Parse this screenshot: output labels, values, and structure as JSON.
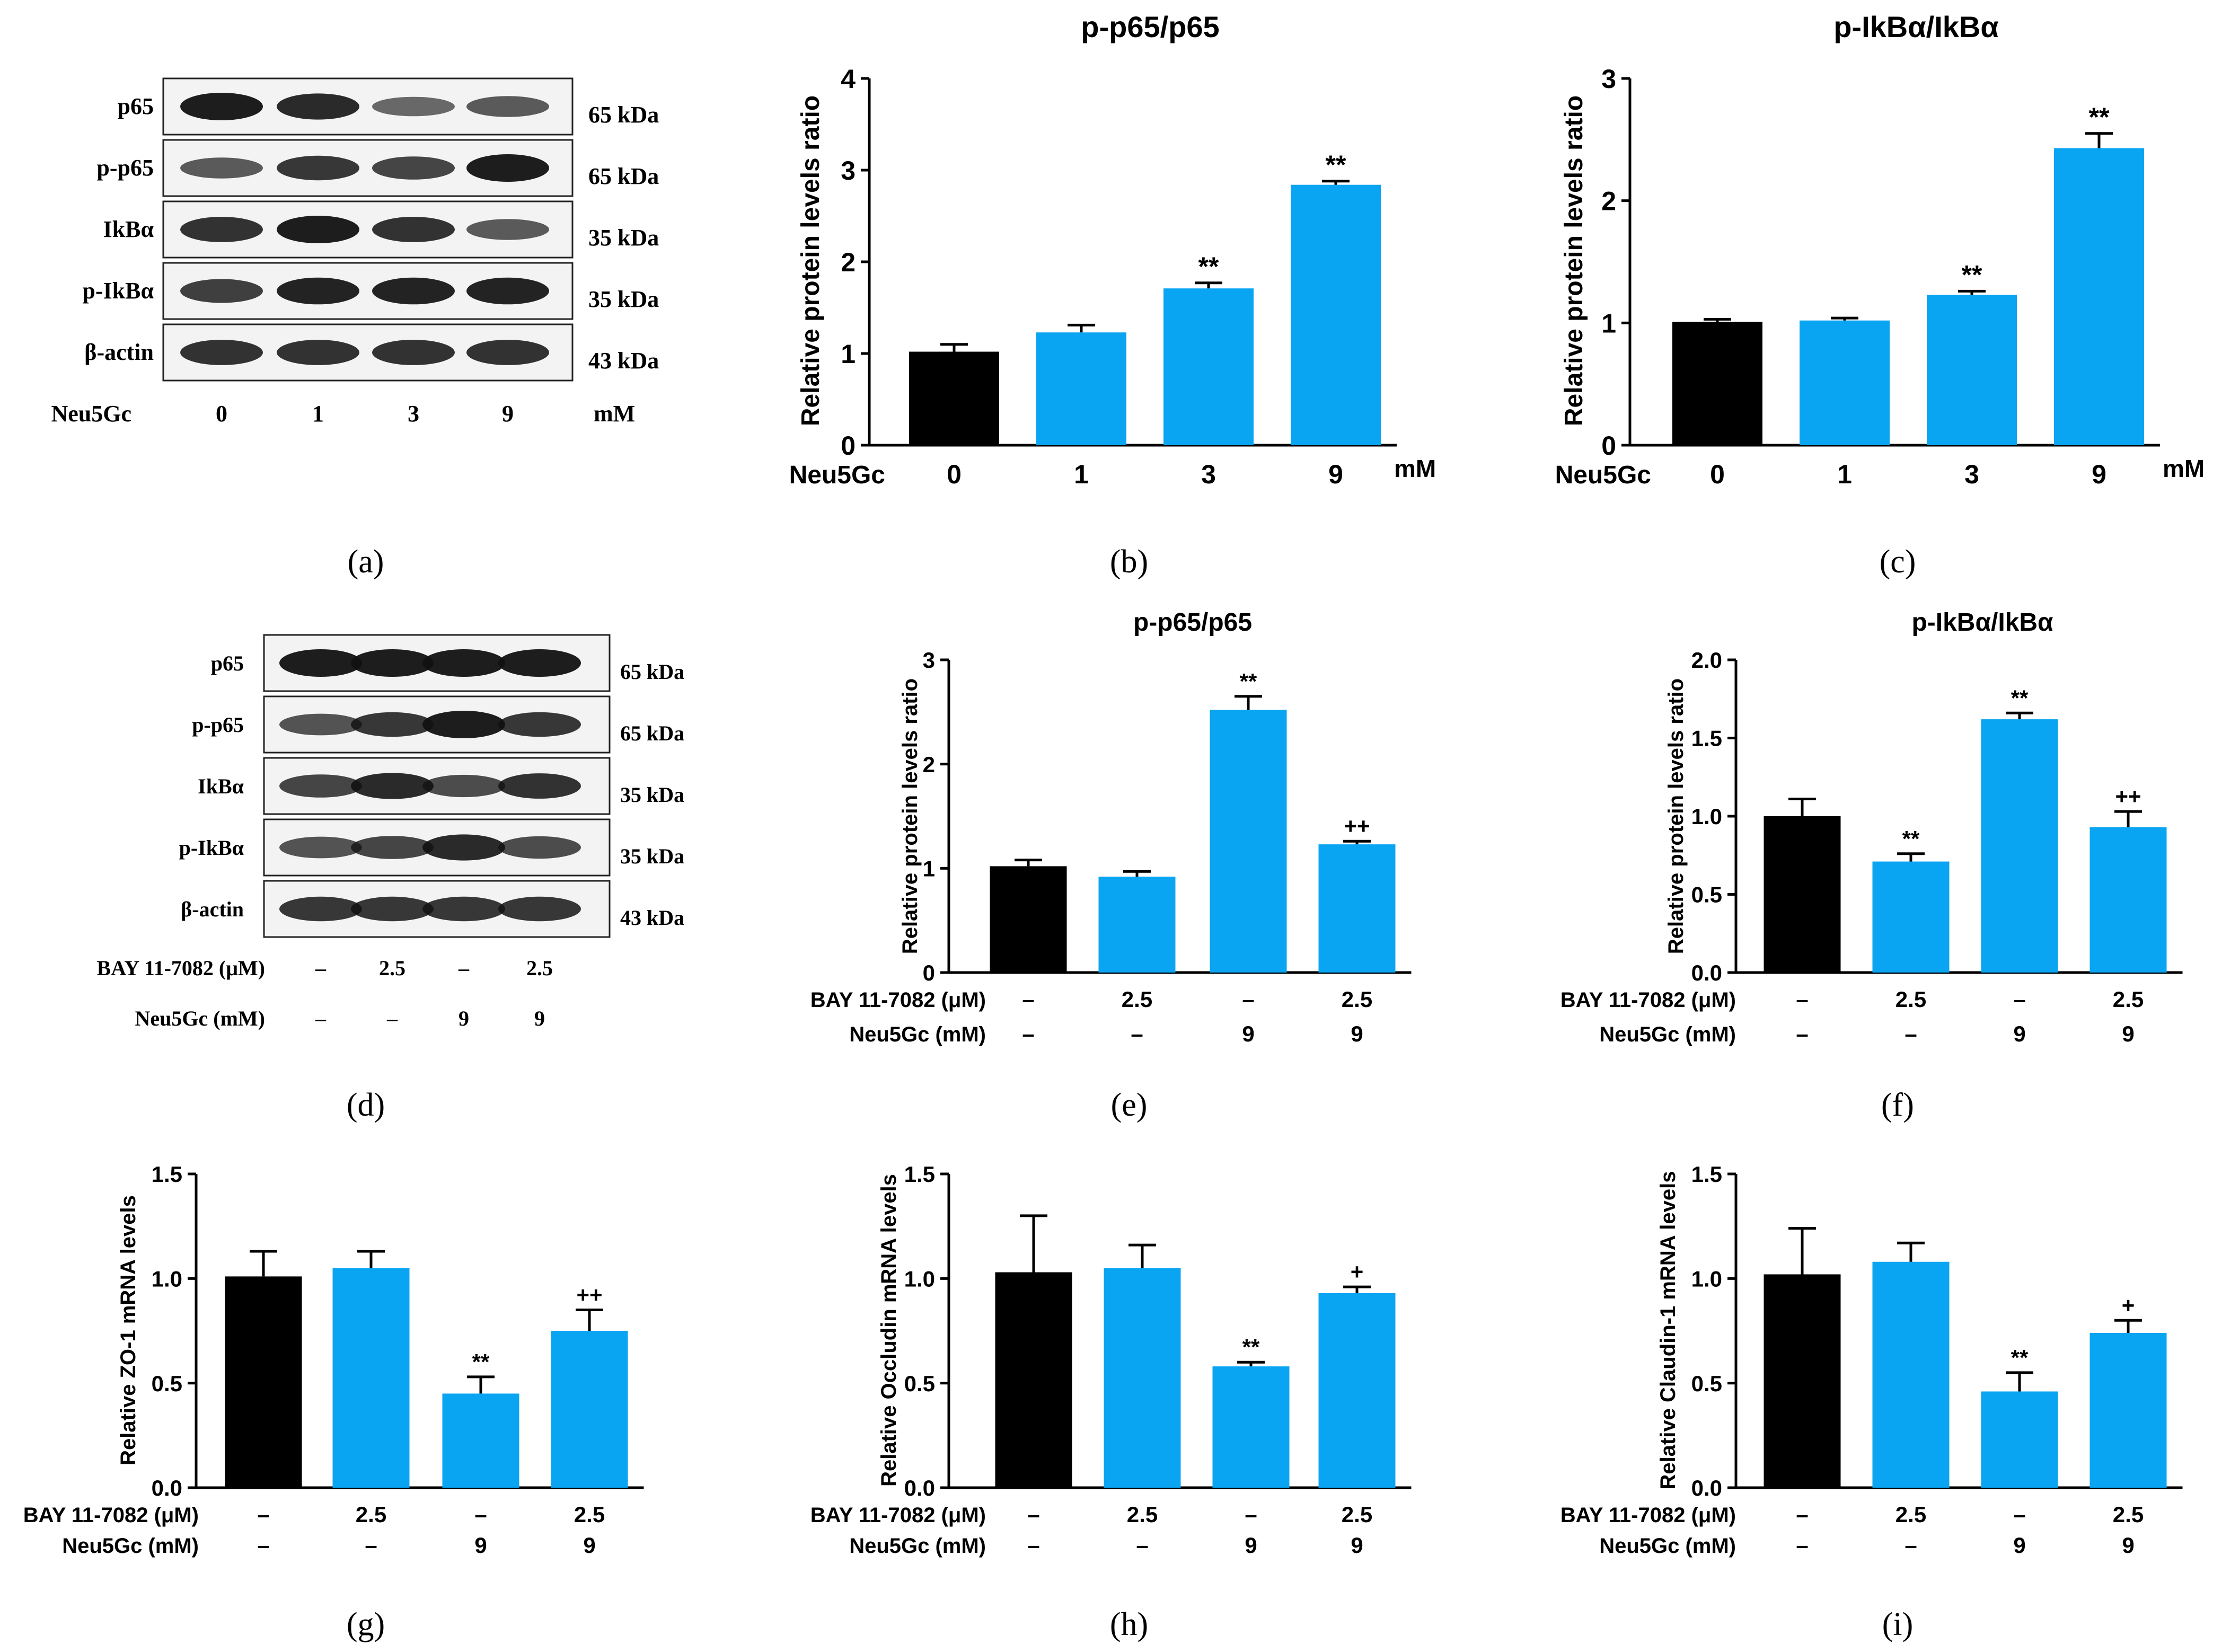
{
  "colors": {
    "control": "#000000",
    "treatment": "#0AA5F2",
    "blot_bg": "#ffffff"
  },
  "blots": [
    {
      "panel": "(a)",
      "bands": [
        {
          "protein": "p65",
          "size": "65 kDa"
        },
        {
          "protein": "p-p65",
          "size": "65 kDa"
        },
        {
          "protein": "IkBα",
          "size": "35 kDa"
        },
        {
          "protein": "p-IkBα",
          "size": "35 kDa"
        },
        {
          "protein": "β-actin",
          "size": "43 kDa"
        }
      ],
      "conditions": [
        {
          "label": "Neu5Gc",
          "values": [
            "0",
            "1",
            "3",
            "9"
          ],
          "unit": "mM"
        }
      ]
    },
    {
      "panel": "(d)",
      "bands": [
        {
          "protein": "p65",
          "size": "65 kDa"
        },
        {
          "protein": "p-p65",
          "size": "65 kDa"
        },
        {
          "protein": "IkBα",
          "size": "35 kDa"
        },
        {
          "protein": "p-IkBα",
          "size": "35 kDa"
        },
        {
          "protein": "β-actin",
          "size": "43 kDa"
        }
      ],
      "conditions": [
        {
          "label": "BAY 11-7082  (μM)",
          "values": [
            "–",
            "2.5",
            "–",
            "2.5"
          ]
        },
        {
          "label": "Neu5Gc (mM)",
          "values": [
            "–",
            "–",
            "9",
            "9"
          ]
        }
      ]
    }
  ],
  "chart_data": [
    {
      "panel": "(b)",
      "type": "bar",
      "title": "p-p65/p65",
      "ylabel": "Relative protein levels ratio",
      "ylim": [
        0,
        4
      ],
      "yticks": [
        "0",
        "1",
        "2",
        "3",
        "4"
      ],
      "conditions": [
        {
          "label": "Neu5Gc",
          "values": [
            "0",
            "1",
            "3",
            "9"
          ],
          "unit": "mM"
        }
      ],
      "values": [
        1.02,
        1.23,
        1.71,
        2.84
      ],
      "errors": [
        0.08,
        0.08,
        0.06,
        0.04
      ],
      "annotations": [
        "",
        "",
        "**",
        "**"
      ]
    },
    {
      "panel": "(c)",
      "type": "bar",
      "title": "p-IkBα/IkBα",
      "ylabel": "Relative protein levels ratio",
      "ylim": [
        0,
        3
      ],
      "yticks": [
        "0",
        "1",
        "2",
        "3"
      ],
      "conditions": [
        {
          "label": "Neu5Gc",
          "values": [
            "0",
            "1",
            "3",
            "9"
          ],
          "unit": "mM"
        }
      ],
      "values": [
        1.01,
        1.02,
        1.23,
        2.43
      ],
      "errors": [
        0.02,
        0.02,
        0.03,
        0.12
      ],
      "annotations": [
        "",
        "",
        "**",
        "**"
      ]
    },
    {
      "panel": "(e)",
      "type": "bar",
      "title": "p-p65/p65",
      "ylabel": "Relative protein levels ratio",
      "ylim": [
        0,
        3
      ],
      "yticks": [
        "0",
        "1",
        "2",
        "3"
      ],
      "conditions": [
        {
          "label": "BAY 11-7082 (μM)",
          "values": [
            "–",
            "2.5",
            "–",
            "2.5"
          ]
        },
        {
          "label": "Neu5Gc (mM)",
          "values": [
            "–",
            "–",
            "9",
            "9"
          ]
        }
      ],
      "values": [
        1.02,
        0.92,
        2.52,
        1.23
      ],
      "errors": [
        0.06,
        0.05,
        0.13,
        0.03
      ],
      "annotations": [
        "",
        "",
        "**",
        "++"
      ]
    },
    {
      "panel": "(f)",
      "type": "bar",
      "title": "p-IkBα/IkBα",
      "ylabel": "Relative protein levels ratio",
      "ylim": [
        0,
        2
      ],
      "yticks": [
        "0.0",
        "0.5",
        "1.0",
        "1.5",
        "2.0"
      ],
      "conditions": [
        {
          "label": "BAY 11-7082 (μM)",
          "values": [
            "–",
            "2.5",
            "–",
            "2.5"
          ]
        },
        {
          "label": "Neu5Gc (mM)",
          "values": [
            "–",
            "–",
            "9",
            "9"
          ]
        }
      ],
      "values": [
        1.0,
        0.71,
        1.62,
        0.93
      ],
      "errors": [
        0.11,
        0.05,
        0.04,
        0.1
      ],
      "annotations": [
        "",
        "**",
        "**",
        "++"
      ]
    },
    {
      "panel": "(g)",
      "type": "bar",
      "title": "",
      "ylabel": "Relative ZO-1 mRNA levels",
      "ylim": [
        0,
        1.5
      ],
      "yticks": [
        "0.0",
        "0.5",
        "1.0",
        "1.5"
      ],
      "conditions": [
        {
          "label": "BAY 11-7082 (μM)",
          "values": [
            "–",
            "2.5",
            "–",
            "2.5"
          ]
        },
        {
          "label": "Neu5Gc (mM)",
          "values": [
            "–",
            "–",
            "9",
            "9"
          ]
        }
      ],
      "values": [
        1.01,
        1.05,
        0.45,
        0.75
      ],
      "errors": [
        0.12,
        0.08,
        0.08,
        0.1
      ],
      "annotations": [
        "",
        "",
        "**",
        "++"
      ]
    },
    {
      "panel": "(h)",
      "type": "bar",
      "title": "",
      "ylabel": "Relative Occludin mRNA levels",
      "ylim": [
        0,
        1.5
      ],
      "yticks": [
        "0.0",
        "0.5",
        "1.0",
        "1.5"
      ],
      "conditions": [
        {
          "label": "BAY 11-7082 (μM)",
          "values": [
            "–",
            "2.5",
            "–",
            "2.5"
          ]
        },
        {
          "label": "Neu5Gc (mM)",
          "values": [
            "–",
            "–",
            "9",
            "9"
          ]
        }
      ],
      "values": [
        1.03,
        1.05,
        0.58,
        0.93
      ],
      "errors": [
        0.27,
        0.11,
        0.02,
        0.03
      ],
      "annotations": [
        "",
        "",
        "**",
        "+"
      ]
    },
    {
      "panel": "(i)",
      "type": "bar",
      "title": "",
      "ylabel": "Relative Claudin-1 mRNA levels",
      "ylim": [
        0,
        1.5
      ],
      "yticks": [
        "0.0",
        "0.5",
        "1.0",
        "1.5"
      ],
      "conditions": [
        {
          "label": "BAY 11-7082 (μM)",
          "values": [
            "–",
            "2.5",
            "–",
            "2.5"
          ]
        },
        {
          "label": "Neu5Gc (mM)",
          "values": [
            "–",
            "–",
            "9",
            "9"
          ]
        }
      ],
      "values": [
        1.02,
        1.08,
        0.46,
        0.74
      ],
      "errors": [
        0.22,
        0.09,
        0.09,
        0.06
      ],
      "annotations": [
        "",
        "",
        "**",
        "+"
      ]
    }
  ]
}
